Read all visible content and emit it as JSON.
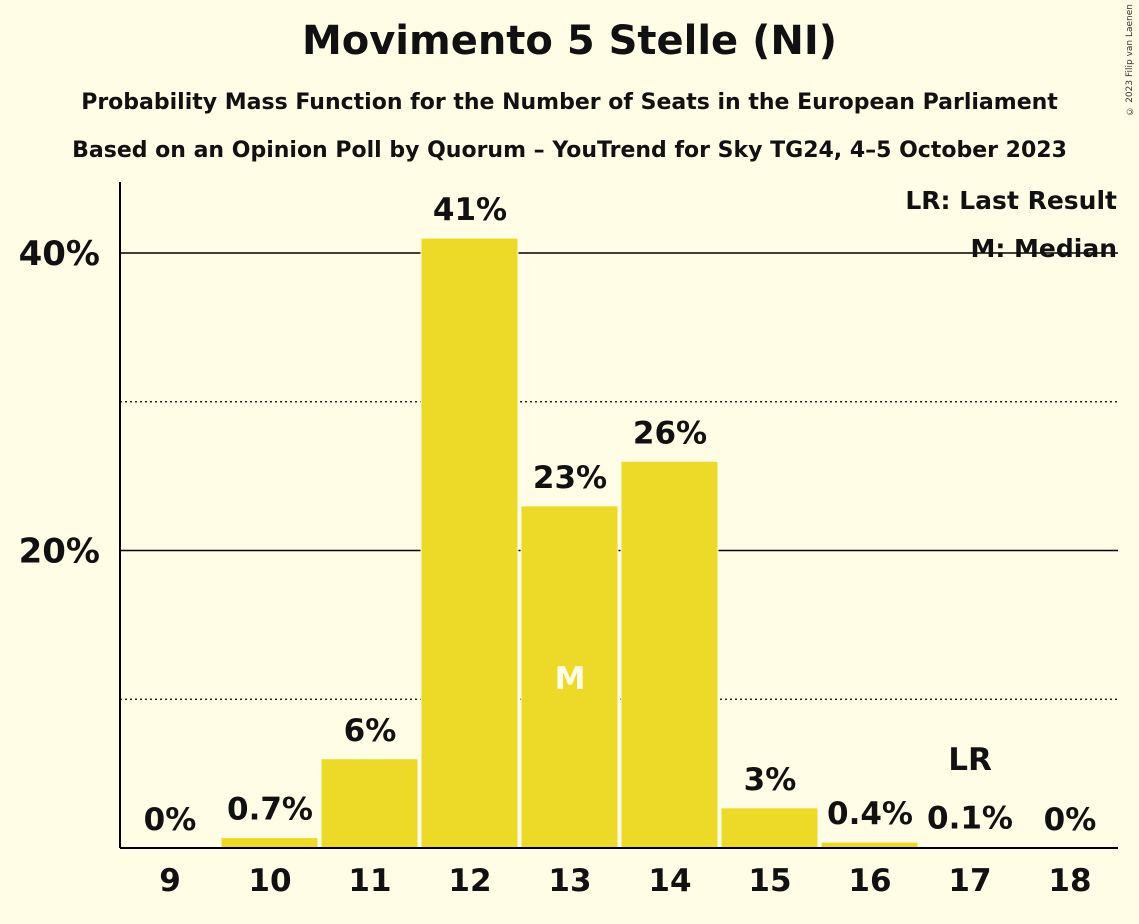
{
  "copyright": "© 2023 Filip van Laenen",
  "chart_data": {
    "type": "bar",
    "title": "Movimento 5 Stelle (NI)",
    "subtitle": "Probability Mass Function for the Number of Seats in the European Parliament",
    "subtitle2": "Based on an Opinion Poll by Quorum – YouTrend for Sky TG24, 4–5 October 2023",
    "categories": [
      "9",
      "10",
      "11",
      "12",
      "13",
      "14",
      "15",
      "16",
      "17",
      "18"
    ],
    "values": [
      0,
      0.7,
      6,
      41,
      23,
      26,
      2.7,
      0.4,
      0.1,
      0
    ],
    "data_labels": [
      "0%",
      "0.7%",
      "6%",
      "41%",
      "23%",
      "26%",
      "3%",
      "0.4%",
      "0.1%",
      "0%"
    ],
    "yticks": [
      20,
      40
    ],
    "ytick_labels": [
      "20%",
      "40%"
    ],
    "minor_gridlines": [
      10,
      30
    ],
    "ylim": [
      0,
      44
    ],
    "median_category": "13",
    "median_marker": "M",
    "last_result_category": "17",
    "last_result_marker": "LR",
    "legend": [
      "LR: Last Result",
      "M: Median"
    ],
    "legend_position": "top-right",
    "bar_color": "#EDD928",
    "grid": true
  }
}
